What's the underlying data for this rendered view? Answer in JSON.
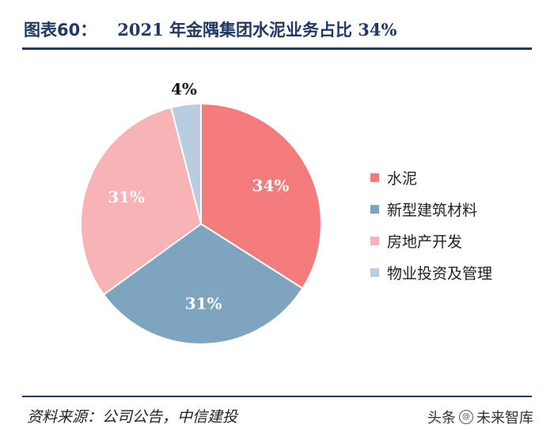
{
  "header": {
    "figure_number": "图表60：",
    "title": "2021 年金隅集团水泥业务占比 34%"
  },
  "chart_data": {
    "type": "pie",
    "categories": [
      "水泥",
      "新型建筑材料",
      "房地产开发",
      "物业投资及管理"
    ],
    "values": [
      34,
      31,
      31,
      4
    ],
    "labels": [
      "34%",
      "31%",
      "31%",
      "4%"
    ],
    "colors": [
      "#f47b7b",
      "#7fa4c0",
      "#f7b3b5",
      "#b8cde0"
    ],
    "legend_position": "right"
  },
  "source": "资料来源：公司公告，中信建投",
  "watermark": {
    "prefix": "头条",
    "brand": "未来智库"
  }
}
